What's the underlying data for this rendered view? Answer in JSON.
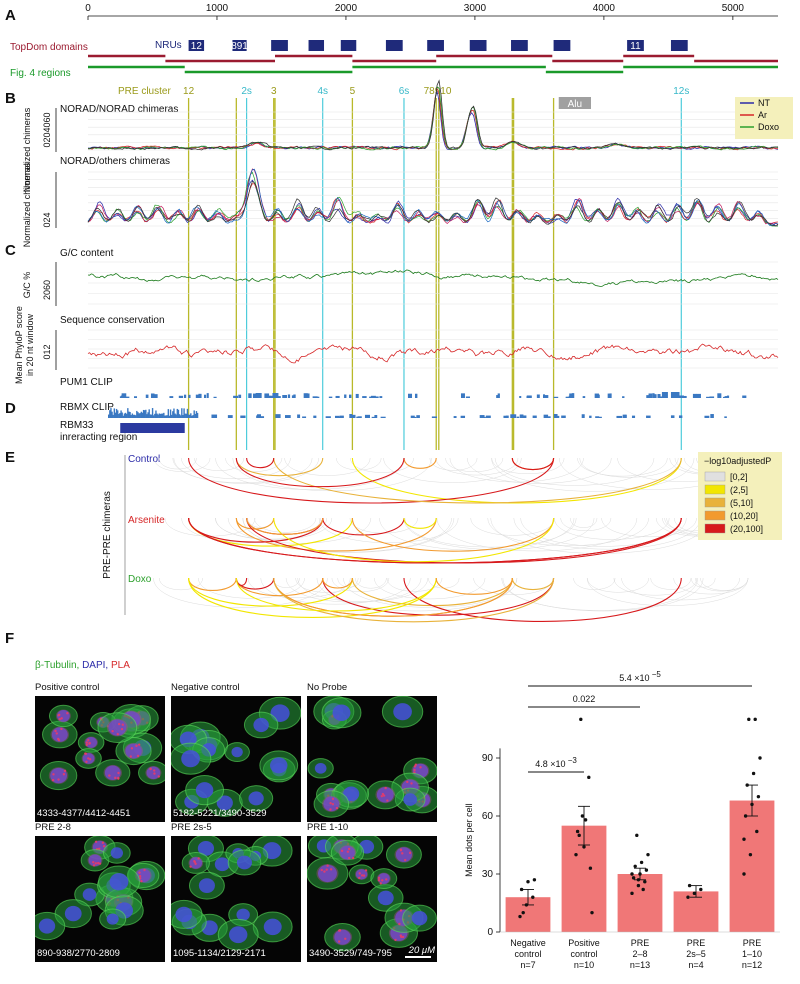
{
  "panels": {
    "A": "A",
    "B": "B",
    "C": "C",
    "D": "D",
    "E": "E",
    "F": "F"
  },
  "panel_a": {
    "axis_ticks": [
      "0",
      "1000",
      "2000",
      "3000",
      "4000",
      "5000"
    ],
    "axis_tick_values": [
      0,
      1000,
      2000,
      3000,
      4000,
      5000
    ],
    "axis_max": 5350,
    "topdom_label": "TopDom domains",
    "nrus_label": "NRUs",
    "fig4_label": "Fig. 4 regions",
    "nru_boxes": [
      {
        "start": 780,
        "end": 900,
        "text": "12"
      },
      {
        "start": 1120,
        "end": 1230,
        "text": "891"
      },
      {
        "start": 1420,
        "end": 1550,
        "text": ""
      },
      {
        "start": 1710,
        "end": 1830,
        "text": ""
      },
      {
        "start": 1960,
        "end": 2080,
        "text": ""
      },
      {
        "start": 2310,
        "end": 2440,
        "text": ""
      },
      {
        "start": 2630,
        "end": 2760,
        "text": ""
      },
      {
        "start": 2960,
        "end": 3090,
        "text": ""
      },
      {
        "start": 3280,
        "end": 3410,
        "text": ""
      },
      {
        "start": 3610,
        "end": 3740,
        "text": ""
      },
      {
        "start": 4180,
        "end": 4310,
        "text": "11"
      },
      {
        "start": 4520,
        "end": 4650,
        "text": ""
      }
    ],
    "topdom_segments": [
      [
        [
          0,
          600
        ],
        [
          1450,
          2050
        ],
        [
          2700,
          3600
        ],
        [
          4150,
          4700
        ]
      ],
      [
        [
          600,
          1450
        ],
        [
          2050,
          2700
        ],
        [
          3600,
          4150
        ],
        [
          4700,
          5350
        ]
      ]
    ],
    "fig4_segments": [
      [
        [
          0,
          750
        ],
        [
          2050,
          3550
        ],
        [
          4150,
          5350
        ]
      ],
      [
        [
          750,
          2050
        ],
        [
          3550,
          4150
        ]
      ]
    ]
  },
  "pre_labels": {
    "title": "PRE cluster",
    "items": [
      {
        "text": "12",
        "pos": 780,
        "color": "olive"
      },
      {
        "text": "2s",
        "pos": 1230,
        "color": "cyan"
      },
      {
        "text": "3",
        "pos": 1440,
        "color": "olive"
      },
      {
        "text": "4s",
        "pos": 1820,
        "color": "cyan"
      },
      {
        "text": "5",
        "pos": 2050,
        "color": "olive"
      },
      {
        "text": "6s",
        "pos": 2450,
        "color": "cyan"
      },
      {
        "text": "78910",
        "pos": 2710,
        "color": "olive"
      },
      {
        "text": "12s",
        "pos": 4600,
        "color": "cyan"
      }
    ],
    "alu_label": "Alu",
    "alu_range": [
      3650,
      3900
    ]
  },
  "panel_b": {
    "track1_title": "NORAD/NORAD chimeras",
    "track1_ylabel": "Normalized chimeras",
    "track1_ticks": "0204060",
    "track2_title": "NORAD/others chimeras",
    "track2_ylabel": "Normalized chimeras",
    "track2_ticks": "024",
    "legend": [
      {
        "name": "NT",
        "color": "#2b2ba8"
      },
      {
        "name": "Ar",
        "color": "#d62728"
      },
      {
        "name": "Doxo",
        "color": "#2ca02c"
      }
    ]
  },
  "panel_c": {
    "gc_title": "G/C content",
    "gc_ylabel": "G/C %",
    "gc_ticks": "2060",
    "cons_title": "Sequence conservation",
    "cons_ylabel1": "Mean PhyloP score",
    "cons_ylabel2": "in 20 nt window",
    "cons_ticks": "012"
  },
  "panel_d": {
    "pum1": "PUM1 CLIP",
    "rbmx": "RBMX CLIP",
    "rbm33_1": "RBM33",
    "rbm33_2": "inreracting region",
    "rbm33_range": [
      250,
      750
    ]
  },
  "panel_e": {
    "side_label": "PRE-PRE chimeras",
    "groups": [
      {
        "name": "Control",
        "color": "#2b2ba8"
      },
      {
        "name": "Arsenite",
        "color": "#d62728"
      },
      {
        "name": "Doxo",
        "color": "#2ca02c"
      }
    ],
    "legend_title": "−log10adjustedP",
    "legend": [
      {
        "range": "[0,2]",
        "color": "#e0e0e0"
      },
      {
        "range": "(2,5]",
        "color": "#f2e600"
      },
      {
        "range": "(5,10]",
        "color": "#e8b23a"
      },
      {
        "range": "(10,20]",
        "color": "#f29a2e"
      },
      {
        "range": "(20,100]",
        "color": "#d7191c"
      }
    ]
  },
  "panel_f": {
    "stain_legend": [
      {
        "text": "β-Tubulin,",
        "color": "#2ca02c"
      },
      {
        "text": " DAPI,",
        "color": "#2b2ba8"
      },
      {
        "text": " PLA",
        "color": "#d62728"
      }
    ],
    "images": [
      {
        "title": "Positive control",
        "caption": "4333-4377/4412-4451",
        "pla": 0.9
      },
      {
        "title": "Negative control",
        "caption": "5182-5221/3490-3529",
        "pla": 0.1
      },
      {
        "title": "No Probe",
        "caption": "",
        "pla": 0.25
      },
      {
        "title": "PRE 2-8",
        "caption": "890-938/2770-2809",
        "pla": 0.2
      },
      {
        "title": "PRE 2s-5",
        "caption": "1095-1134/2129-2171",
        "pla": 0.15
      },
      {
        "title": "PRE 1-10",
        "caption": "3490-3529/749-795",
        "pla": 0.7
      }
    ],
    "scalebar_label": "20 μM"
  },
  "chart_data": {
    "type": "bar",
    "categories": [
      "Negative control",
      "Positive control",
      "PRE 2–8",
      "PRE 2s–5",
      "PRE 1–10"
    ],
    "category_lines": [
      [
        "Negative",
        "control",
        "n=7"
      ],
      [
        "Positive",
        "control",
        "n=10"
      ],
      [
        "PRE",
        "2–8",
        "n=13"
      ],
      [
        "PRE",
        "2s–5",
        "n=4"
      ],
      [
        "PRE",
        "1–10",
        "n=12"
      ]
    ],
    "values": [
      18,
      55,
      30,
      21,
      68
    ],
    "errors": [
      4,
      10,
      3,
      3,
      8
    ],
    "points": [
      [
        8,
        14,
        18,
        22,
        26,
        27,
        10
      ],
      [
        40,
        60,
        80,
        52,
        44,
        33,
        50,
        58,
        10,
        110
      ],
      [
        20,
        24,
        26,
        28,
        30,
        32,
        34,
        36,
        40,
        50,
        22,
        30,
        27
      ],
      [
        18,
        20,
        22,
        24
      ],
      [
        30,
        40,
        52,
        60,
        66,
        70,
        76,
        82,
        90,
        110,
        110,
        48
      ]
    ],
    "ylabel": "Mean dots per cell",
    "yticks": [
      0,
      30,
      60,
      90
    ],
    "ylim": [
      0,
      120
    ],
    "bar_color": "#f07777",
    "brackets": [
      {
        "from": 0,
        "to": 1,
        "label_base": "4.8 ×10",
        "label_exp": "−3"
      },
      {
        "from": 0,
        "to": 2,
        "label_base": "0.022",
        "label_exp": ""
      },
      {
        "from": 0,
        "to": 4,
        "label_base": "5.4 ×10",
        "label_exp": "−5"
      }
    ]
  }
}
